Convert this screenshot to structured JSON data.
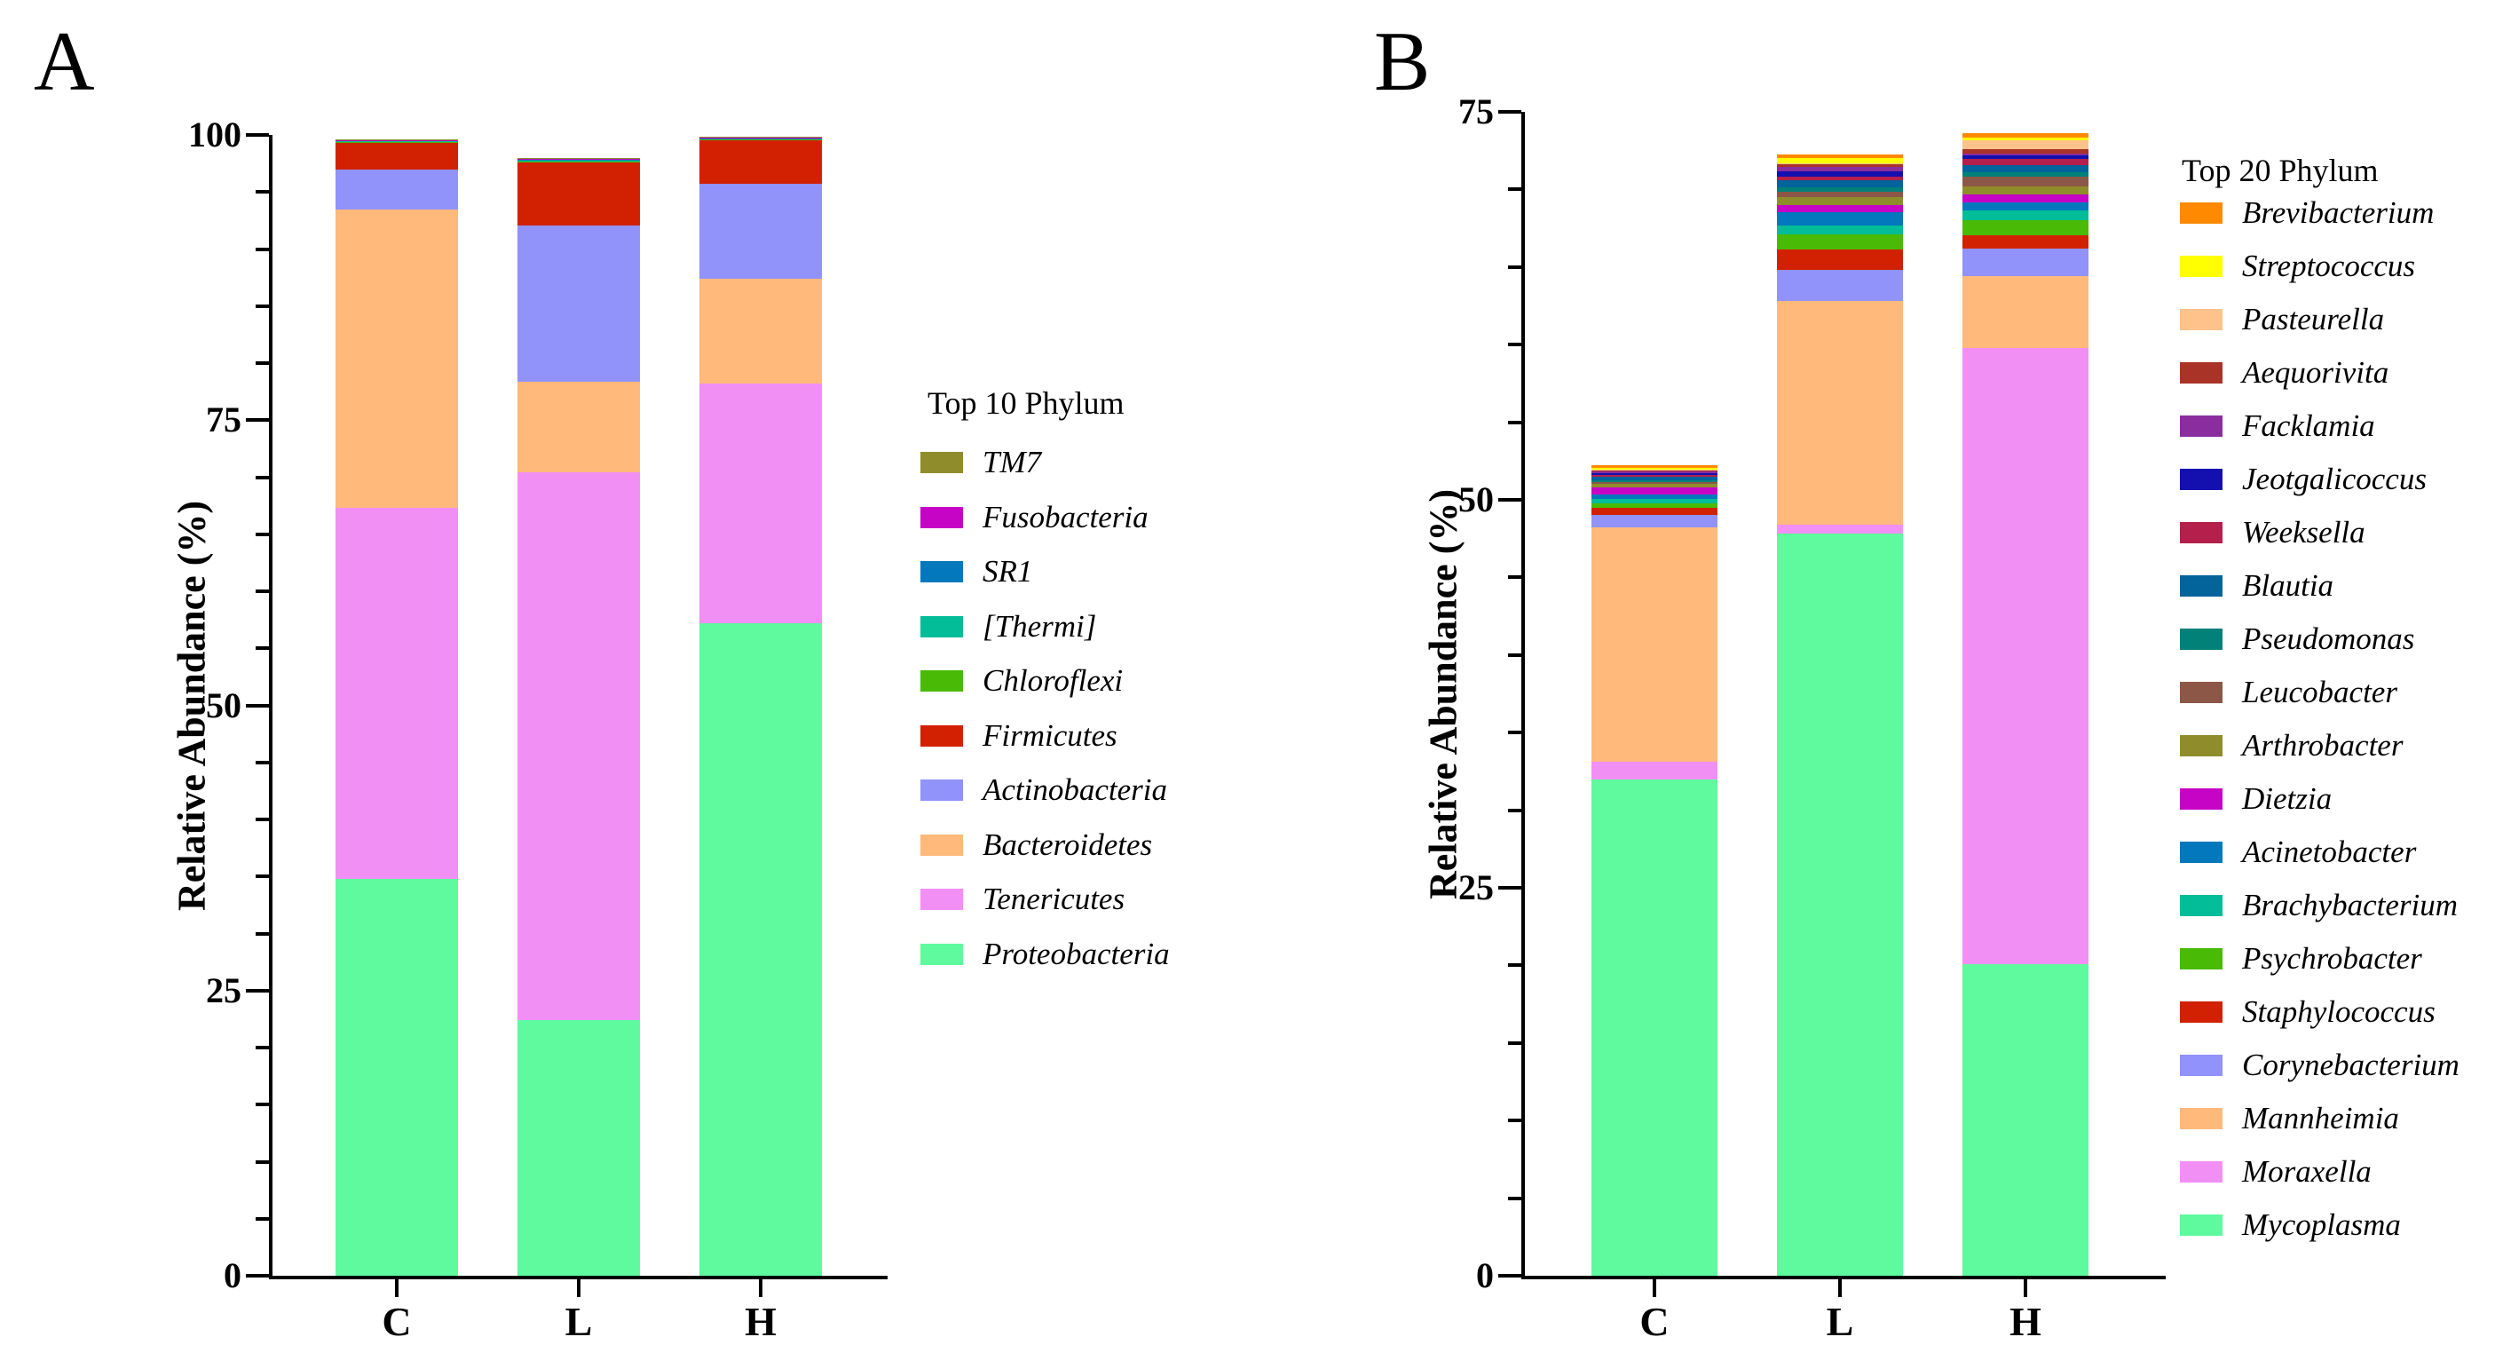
{
  "figure": {
    "background": "#FFFFFF"
  },
  "panel_letters": {
    "a": "A",
    "b": "B"
  },
  "chart_data": [
    {
      "type": "bar",
      "stacked": true,
      "panel": "A",
      "legend_title": "Top 10 Phylum",
      "ylabel": "Relative Abundance (%)",
      "xlabel": "",
      "ylim": [
        0,
        100
      ],
      "yticks": [
        0,
        25,
        50,
        75,
        100
      ],
      "minor_tick_step": 5,
      "grid": false,
      "legend_position": "right",
      "categories": [
        "C",
        "L",
        "H"
      ],
      "series_bottom_to_top": [
        {
          "name": "Proteobacteria",
          "color": "#5EFA9D",
          "values": [
            34.8,
            22.4,
            57.2
          ]
        },
        {
          "name": "Tenericutes",
          "color": "#F18FF5",
          "values": [
            32.5,
            48.0,
            21.0
          ]
        },
        {
          "name": "Bacteroidetes",
          "color": "#FFB97B",
          "values": [
            26.2,
            8.0,
            9.2
          ]
        },
        {
          "name": "Actinobacteria",
          "color": "#9192FA",
          "values": [
            3.5,
            13.7,
            8.3
          ]
        },
        {
          "name": "Firmicutes",
          "color": "#D12102",
          "values": [
            2.3,
            5.5,
            3.8
          ]
        },
        {
          "name": "Chloroflexi",
          "color": "#49BA05",
          "values": [
            0.15,
            0.15,
            0.15
          ]
        },
        {
          "name": "[Thermi]",
          "color": "#02BD97",
          "values": [
            0.04,
            0.03,
            0.04
          ]
        },
        {
          "name": "SR1",
          "color": "#0378BC",
          "values": [
            0.03,
            0.03,
            0.03
          ]
        },
        {
          "name": "Fusobacteria",
          "color": "#C504C6",
          "values": [
            0.04,
            0.12,
            0.1
          ]
        },
        {
          "name": "TM7",
          "color": "#8F8D2B",
          "values": [
            0.02,
            0.02,
            0.02
          ]
        }
      ]
    },
    {
      "type": "bar",
      "stacked": true,
      "panel": "B",
      "legend_title": "Top 20 Phylum",
      "ylabel": "Relative Abundance (%)",
      "xlabel": "",
      "ylim": [
        0,
        75
      ],
      "yticks": [
        0,
        25,
        50,
        75
      ],
      "minor_tick_step": 5,
      "grid": false,
      "legend_position": "right",
      "categories": [
        "C",
        "L",
        "H"
      ],
      "series_bottom_to_top": [
        {
          "name": "Mycoplasma",
          "color": "#5EFA9D",
          "values": [
            32.0,
            47.8,
            20.1
          ]
        },
        {
          "name": "Moraxella",
          "color": "#F18FF5",
          "values": [
            1.1,
            0.6,
            39.7
          ]
        },
        {
          "name": "Mannheimia",
          "color": "#FFB97B",
          "values": [
            15.1,
            14.4,
            4.6
          ]
        },
        {
          "name": "Corynebacterium",
          "color": "#9192FA",
          "values": [
            0.8,
            2.0,
            1.8
          ]
        },
        {
          "name": "Staphylococcus",
          "color": "#D12102",
          "values": [
            0.5,
            1.34,
            0.85
          ]
        },
        {
          "name": "Psychrobacter",
          "color": "#49BA05",
          "values": [
            0.25,
            0.95,
            0.95
          ]
        },
        {
          "name": "Brachybacterium",
          "color": "#02BD97",
          "values": [
            0.32,
            0.61,
            0.65
          ]
        },
        {
          "name": "Acinetobacter",
          "color": "#0378BC",
          "values": [
            0.29,
            0.82,
            0.5
          ]
        },
        {
          "name": "Dietzia",
          "color": "#C504C6",
          "values": [
            0.42,
            0.48,
            0.55
          ]
        },
        {
          "name": "Arthrobacter",
          "color": "#8F8D2B",
          "values": [
            0.25,
            0.48,
            0.5
          ]
        },
        {
          "name": "Leucobacter",
          "color": "#8C5746",
          "values": [
            0.13,
            0.38,
            0.65
          ]
        },
        {
          "name": "Pseudomonas",
          "color": "#028178",
          "values": [
            0.11,
            0.29,
            0.25
          ]
        },
        {
          "name": "Blautia",
          "color": "#03639B",
          "values": [
            0.19,
            0.42,
            0.45
          ]
        },
        {
          "name": "Weeksella",
          "color": "#B41F4B",
          "values": [
            0.13,
            0.25,
            0.4
          ]
        },
        {
          "name": "Jeotgalicoccus",
          "color": "#1310AF",
          "values": [
            0.13,
            0.33,
            0.25
          ]
        },
        {
          "name": "Facklamia",
          "color": "#8A2D9F",
          "values": [
            0.1,
            0.3,
            0.1
          ]
        },
        {
          "name": "Aequorivita",
          "color": "#A93327",
          "values": [
            0.1,
            0.2,
            0.3
          ]
        },
        {
          "name": "Pasteurella",
          "color": "#FEC28B",
          "values": [
            0.05,
            0.05,
            0.55
          ]
        },
        {
          "name": "Streptococcus",
          "color": "#FFFF02",
          "values": [
            0.11,
            0.3,
            0.2
          ]
        },
        {
          "name": "Brevibacterium",
          "color": "#FF8A02",
          "values": [
            0.15,
            0.23,
            0.25
          ]
        }
      ]
    }
  ]
}
